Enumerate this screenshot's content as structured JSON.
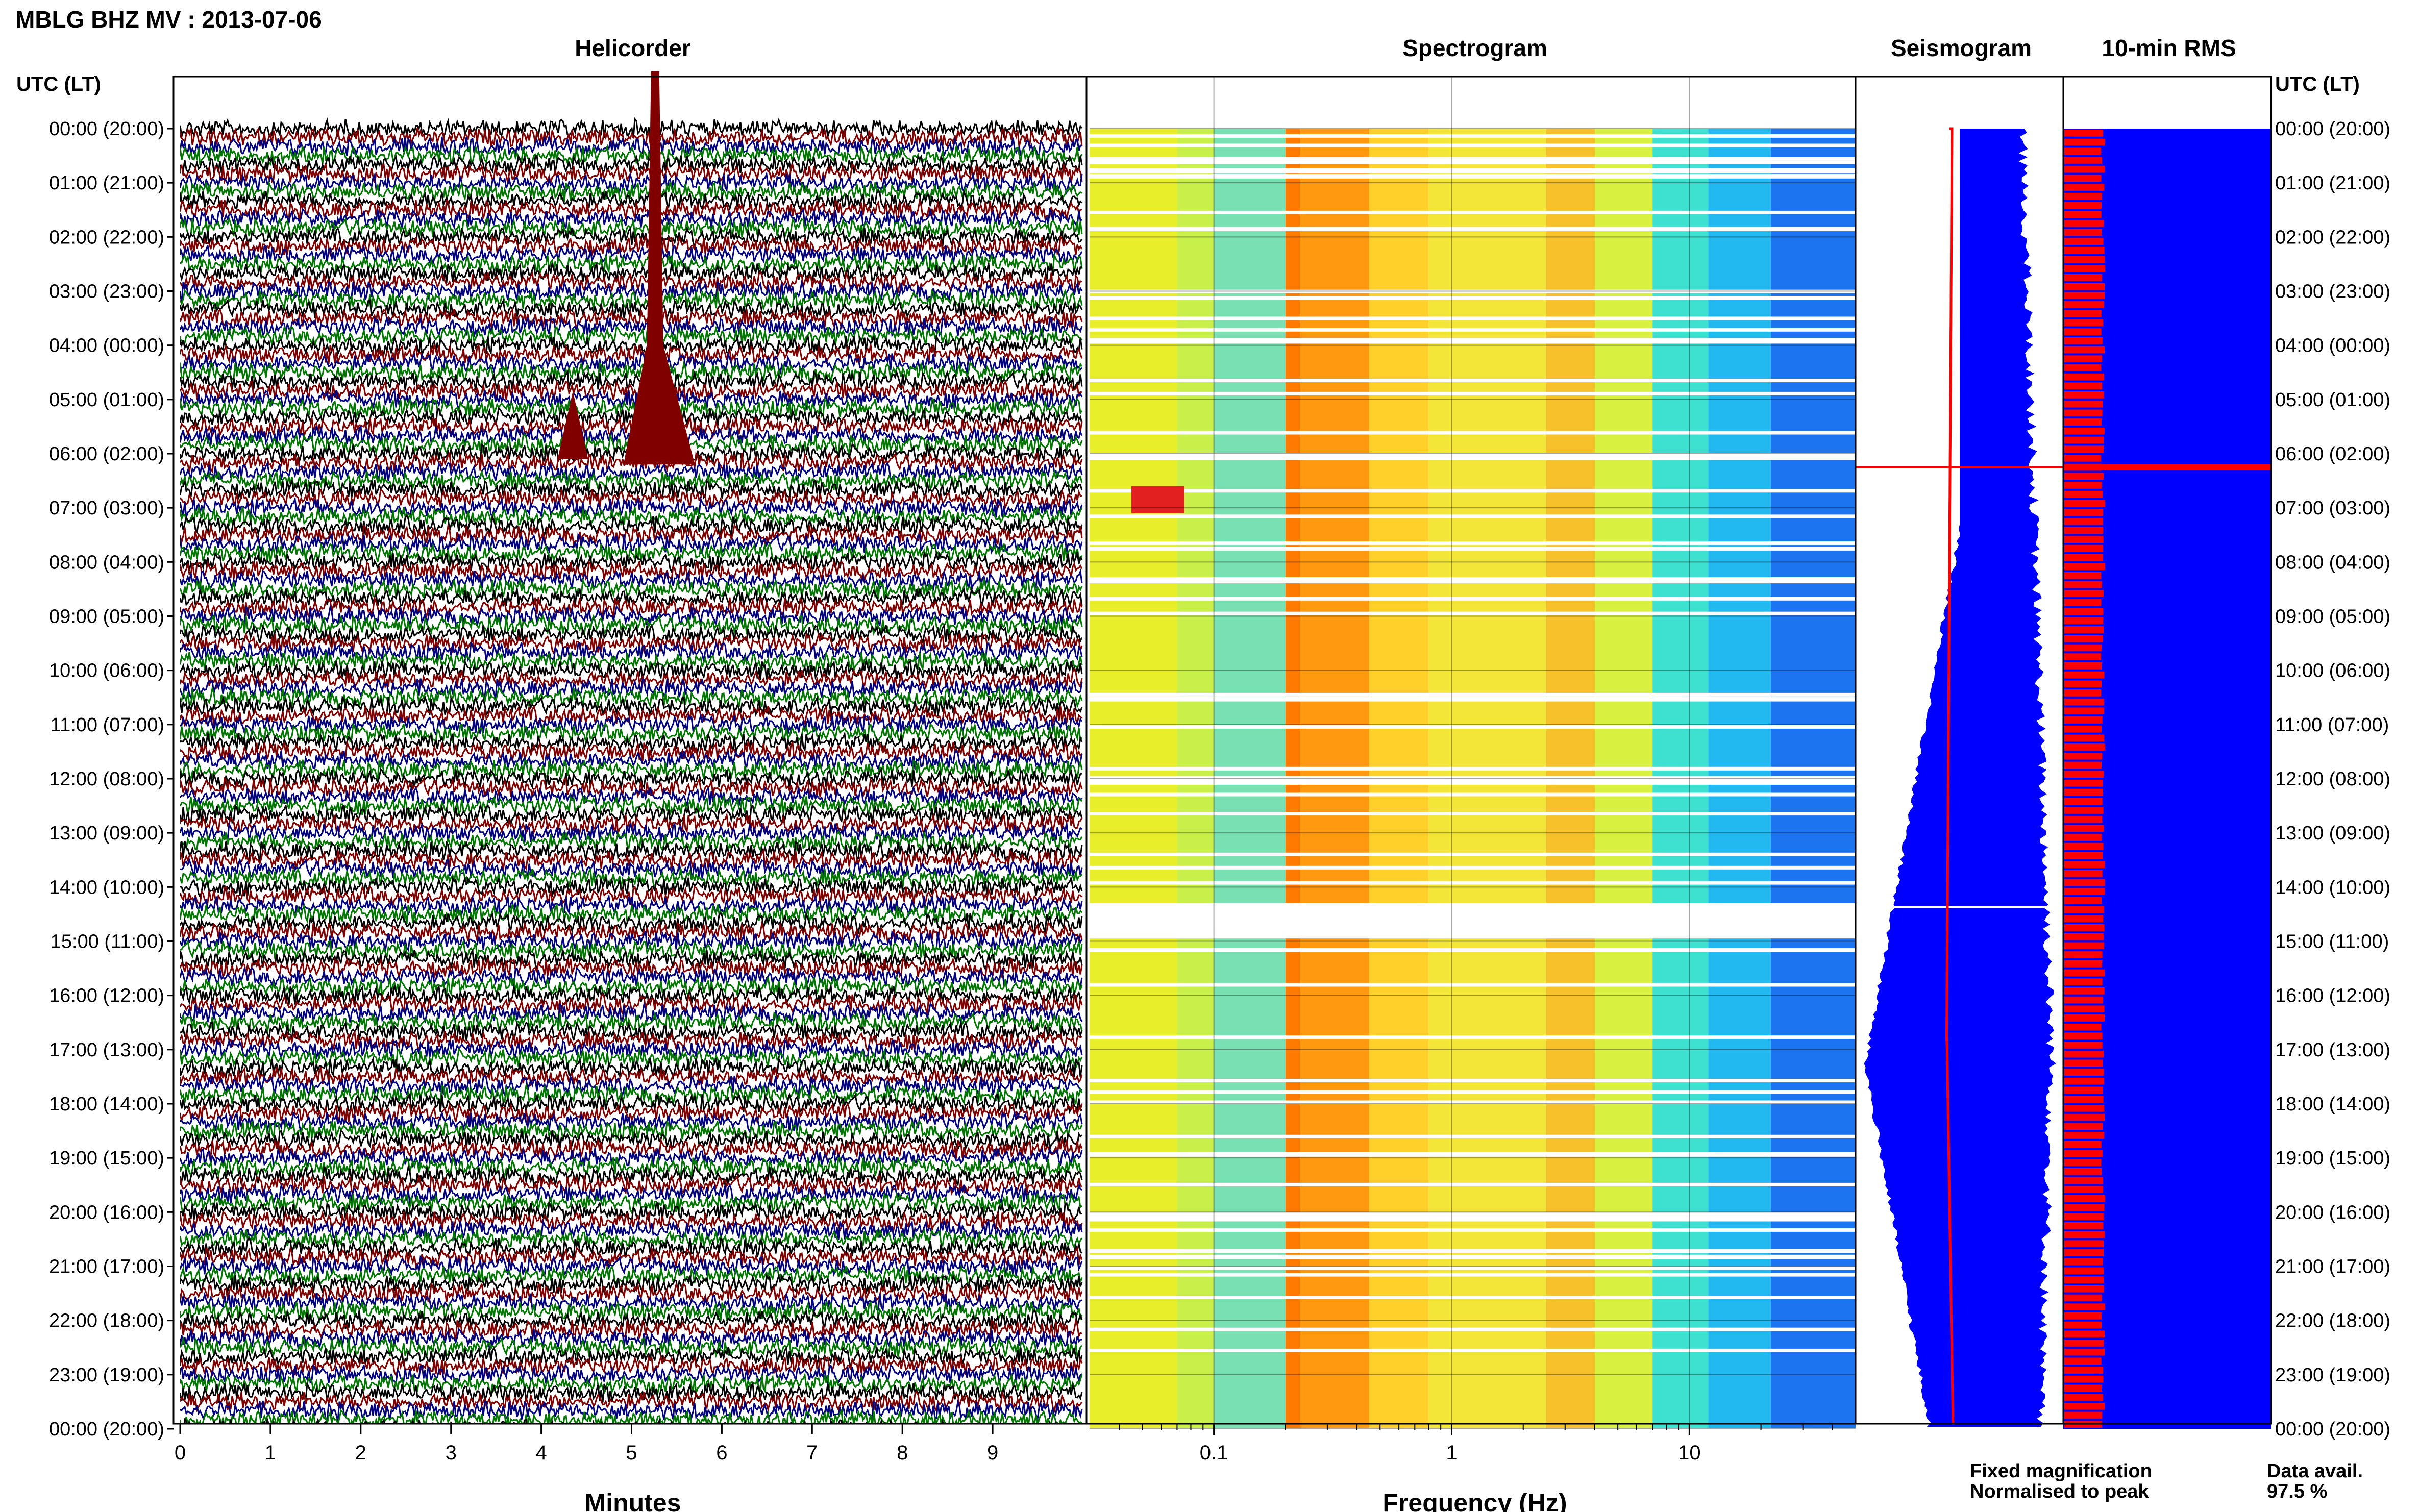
{
  "title": "MBLG BHZ MV : 2013-07-06",
  "panels": {
    "helicorder": "Helicorder",
    "spectrogram": "Spectrogram",
    "seismogram": "Seismogram",
    "rms": "10-min RMS"
  },
  "axis_header": "UTC (LT)",
  "time_labels": [
    "00:00 (20:00)",
    "01:00 (21:00)",
    "02:00 (22:00)",
    "03:00 (23:00)",
    "04:00 (00:00)",
    "05:00 (01:00)",
    "06:00 (02:00)",
    "07:00 (03:00)",
    "08:00 (04:00)",
    "09:00 (05:00)",
    "10:00 (06:00)",
    "11:00 (07:00)",
    "12:00 (08:00)",
    "13:00 (09:00)",
    "14:00 (10:00)",
    "15:00 (11:00)",
    "16:00 (12:00)",
    "17:00 (13:00)",
    "18:00 (14:00)",
    "19:00 (15:00)",
    "20:00 (16:00)",
    "21:00 (17:00)",
    "22:00 (18:00)",
    "23:00 (19:00)",
    "00:00 (20:00)"
  ],
  "minutes_axis": {
    "label": "Minutes",
    "ticks": [
      "0",
      "1",
      "2",
      "3",
      "4",
      "5",
      "6",
      "7",
      "8",
      "9"
    ]
  },
  "frequency_axis": {
    "label": "Frequency (Hz)",
    "ticks": [
      "0.1",
      "1",
      "10"
    ]
  },
  "legend": {
    "fixed": {
      "text": "Fixed magnification",
      "color": "#0000ff"
    },
    "normalised": {
      "text": "Normalised to peak",
      "color": "#ff0000"
    }
  },
  "availability": {
    "label": "Data avail.",
    "value": "97.5 %"
  },
  "colors": {
    "trace_black": "#000000",
    "trace_red": "#800000",
    "trace_blue": "#000080",
    "trace_green": "#007700",
    "seis_blue": "#0000ff",
    "rms_red": "#ff0000"
  },
  "chart_data": {
    "type": "heatmap",
    "helicorder": {
      "x_range_minutes": [
        0,
        10
      ],
      "hours": 24,
      "traces_per_hour": 6,
      "trace_colors": [
        "black",
        "red",
        "blue",
        "green"
      ]
    },
    "spectrogram": {
      "x_scale": "log",
      "x_range_hz": [
        0.03,
        50
      ],
      "colormap": "jet"
    },
    "events_utc_hour": [
      5.3,
      6.2
    ],
    "data_gap_utc_hour": [
      14.35,
      14.95
    ],
    "rms_spike_utc_hour": 6.25
  }
}
